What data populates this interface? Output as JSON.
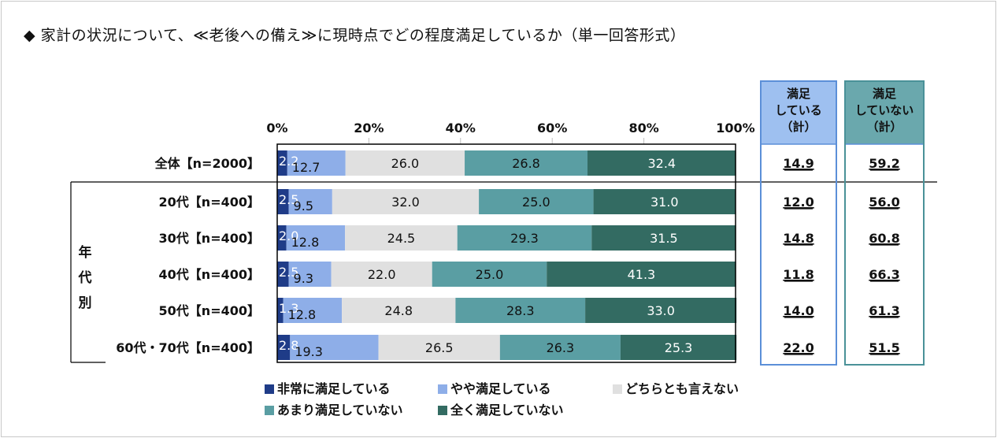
{
  "title": "◆ 家計の状況について、≪老後への備え≫に現時点でどの程度満足しているか（単一回答形式）",
  "colors": {
    "very_satisfied": "#1f3c88",
    "somewhat_satisfied": "#8eaee8",
    "neutral": "#e0e0e0",
    "somewhat_unsatisfied": "#5a9ea3",
    "very_unsatisfied": "#336b62",
    "sat_box_bg": "#9ec0f0",
    "unsat_box_bg": "#6aa8ad"
  },
  "side_headers": {
    "satisfied": [
      "満足",
      "している",
      "（計）"
    ],
    "unsatisfied": [
      "満足",
      "していない",
      "（計）"
    ]
  },
  "group_label": [
    "年",
    "代",
    "別"
  ],
  "chart_data": {
    "type": "bar",
    "orientation": "horizontal",
    "stacked": true,
    "x_axis": {
      "min": 0,
      "max": 100,
      "ticks": [
        "0%",
        "20%",
        "40%",
        "60%",
        "80%",
        "100%"
      ]
    },
    "categories": [
      "全体【n=2000】",
      "20代【n=400】",
      "30代【n=400】",
      "40代【n=400】",
      "50代【n=400】",
      "60代・70代【n=400】"
    ],
    "series": [
      {
        "name": "非常に満足している",
        "values": [
          2.2,
          2.5,
          2.0,
          2.5,
          1.3,
          2.8
        ]
      },
      {
        "name": "やや満足している",
        "values": [
          12.7,
          9.5,
          12.8,
          9.3,
          12.8,
          19.3
        ]
      },
      {
        "name": "どちらとも言えない",
        "values": [
          26.0,
          32.0,
          24.5,
          22.0,
          24.8,
          26.5
        ]
      },
      {
        "name": "あまり満足していない",
        "values": [
          26.8,
          25.0,
          29.3,
          25.0,
          28.3,
          26.3
        ]
      },
      {
        "name": "全く満足していない",
        "values": [
          32.4,
          31.0,
          31.5,
          41.3,
          33.0,
          25.3
        ]
      }
    ],
    "labels": [
      [
        "2.2",
        "12.7",
        "26.0",
        "26.8",
        "32.4"
      ],
      [
        "2.5",
        "9.5",
        "32.0",
        "25.0",
        "31.0"
      ],
      [
        "2.0",
        "12.8",
        "24.5",
        "29.3",
        "31.5"
      ],
      [
        "2.5",
        "9.3",
        "22.0",
        "25.0",
        "41.3"
      ],
      [
        "1.3",
        "12.8",
        "24.8",
        "28.3",
        "33.0"
      ],
      [
        "2.8",
        "19.3",
        "26.5",
        "26.3",
        "25.3"
      ]
    ],
    "satisfied_total": [
      "14.9",
      "12.0",
      "14.8",
      "11.8",
      "14.0",
      "22.0"
    ],
    "unsatisfied_total": [
      "59.2",
      "56.0",
      "60.8",
      "66.3",
      "61.3",
      "51.5"
    ],
    "legend": [
      "非常に満足している",
      "やや満足している",
      "どちらとも言えない",
      "あまり満足していない",
      "全く満足していない"
    ],
    "legend_position": "bottom"
  }
}
